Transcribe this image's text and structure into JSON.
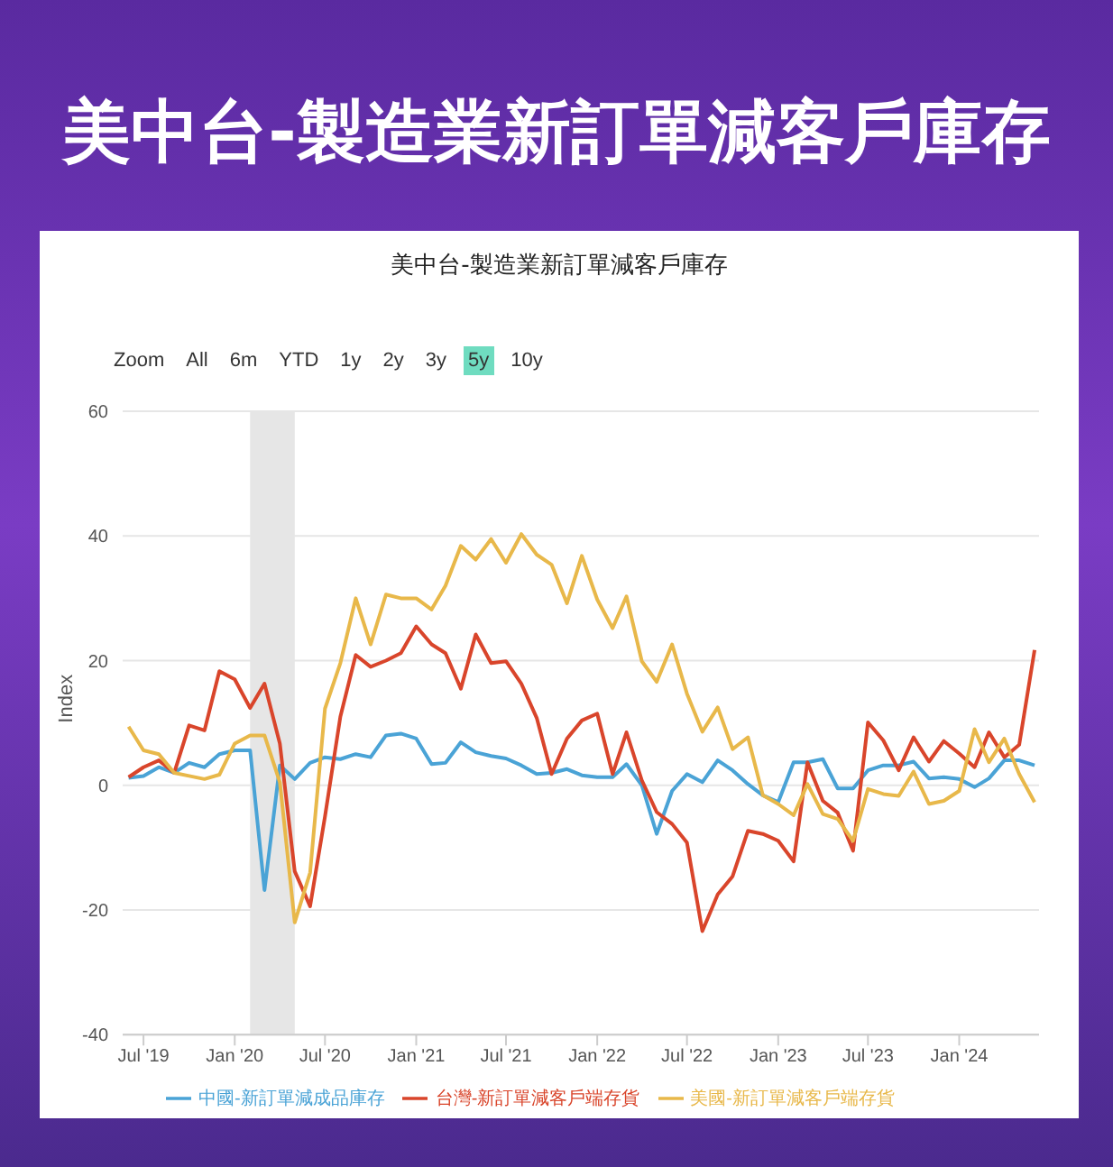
{
  "chart_data": {
    "type": "line",
    "title": "美中台-製造業新訂單減客戶庫存",
    "subtitle": "美中台-製造業新訂單減客戶庫存",
    "ylabel": "Index",
    "annotations": [
      "Zoom",
      "All",
      "6m",
      "YTD",
      "1y",
      "2y",
      "3y",
      "5y",
      "10y"
    ],
    "x": [
      "2019-06",
      "2019-07",
      "2019-08",
      "2019-09",
      "2019-10",
      "2019-11",
      "2019-12",
      "2020-01",
      "2020-02",
      "2020-03",
      "2020-04",
      "2020-05",
      "2020-06",
      "2020-07",
      "2020-08",
      "2020-09",
      "2020-10",
      "2020-11",
      "2020-12",
      "2021-01",
      "2021-02",
      "2021-03",
      "2021-04",
      "2021-05",
      "2021-06",
      "2021-07",
      "2021-08",
      "2021-09",
      "2021-10",
      "2021-11",
      "2021-12",
      "2022-01",
      "2022-02",
      "2022-03",
      "2022-04",
      "2022-05",
      "2022-06",
      "2022-07",
      "2022-08",
      "2022-09",
      "2022-10",
      "2022-11",
      "2022-12",
      "2023-01",
      "2023-02",
      "2023-03",
      "2023-04",
      "2023-05",
      "2023-06",
      "2023-07",
      "2023-08",
      "2023-09",
      "2023-10",
      "2023-11",
      "2023-12",
      "2024-01",
      "2024-02",
      "2024-03",
      "2024-04",
      "2024-05",
      "2024-06"
    ],
    "series": [
      {
        "name": "中國-新訂單減成品庫存",
        "color": "#4aa3d6",
        "values": [
          1.2,
          1.5,
          2.9,
          2,
          3.6,
          2.9,
          5,
          5.6,
          5.6,
          -16.8,
          3.2,
          1,
          3.6,
          4.5,
          4.2,
          5,
          4.5,
          8,
          8.3,
          7.5,
          3.4,
          3.6,
          6.9,
          5.3,
          4.7,
          4.3,
          3.2,
          1.8,
          2,
          2.6,
          1.6,
          1.3,
          1.3,
          3.4,
          0,
          -7.8,
          -0.9,
          1.8,
          0.5,
          4,
          2.4,
          0.2,
          -1.6,
          -2.7,
          3.7,
          3.7,
          4.2,
          -0.5,
          -0.5,
          2.4,
          3.2,
          3.2,
          3.8,
          1.1,
          1.3,
          1,
          -0.3,
          1.1,
          4,
          4,
          3.2
        ]
      },
      {
        "name": "台灣-新訂單減客戶端存貨",
        "color": "#d9452b",
        "values": [
          1.3,
          2.9,
          4,
          2,
          9.6,
          8.8,
          18.3,
          17,
          12.4,
          16.3,
          6.7,
          -13.8,
          -19.4,
          -5,
          11,
          20.9,
          19,
          20,
          21.2,
          25.5,
          22.6,
          21.2,
          15.5,
          24.2,
          19.6,
          19.9,
          16.3,
          10.8,
          1.8,
          7.5,
          10.4,
          11.5,
          1.8,
          8.5,
          0.8,
          -4.3,
          -6.2,
          -9.2,
          -23.4,
          -17.5,
          -14.6,
          -7.3,
          -7.8,
          -8.9,
          -12.2,
          3.7,
          -2.5,
          -4.4,
          -10.5,
          10.1,
          7.2,
          2.4,
          7.7,
          3.8,
          7.1,
          5.1,
          2.9,
          8.5,
          4.5,
          6.5,
          21.7
        ]
      },
      {
        "name": "美國-新訂單減客戶端存貨",
        "color": "#e8b84a",
        "values": [
          9.4,
          5.6,
          5,
          2,
          1.5,
          1,
          1.7,
          6.7,
          8,
          8,
          0.5,
          -22,
          -14,
          12.3,
          19.6,
          30,
          22.6,
          30.6,
          30,
          30,
          28.2,
          32,
          38.4,
          36.2,
          39.5,
          35.7,
          40.3,
          37,
          35.4,
          29.2,
          36.8,
          29.8,
          25.2,
          30.3,
          19.9,
          16.6,
          22.6,
          14.7,
          8.6,
          12.5,
          5.8,
          7.7,
          -1.6,
          -3,
          -4.8,
          0.2,
          -4.6,
          -5.4,
          -8.9,
          -0.6,
          -1.4,
          -1.7,
          2.2,
          -3,
          -2.5,
          -0.9,
          9,
          3.7,
          7.5,
          1.8,
          -2.7
        ]
      }
    ],
    "xlim": [
      "2019-05-20",
      "2024-06-10"
    ],
    "xticks": [
      {
        "value": "2019-07",
        "label": "Jul '19"
      },
      {
        "value": "2020-01",
        "label": "Jan '20"
      },
      {
        "value": "2020-07",
        "label": "Jul '20"
      },
      {
        "value": "2021-01",
        "label": "Jan '21"
      },
      {
        "value": "2021-07",
        "label": "Jul '21"
      },
      {
        "value": "2022-01",
        "label": "Jan '22"
      },
      {
        "value": "2022-07",
        "label": "Jul '22"
      },
      {
        "value": "2023-01",
        "label": "Jan '23"
      },
      {
        "value": "2023-07",
        "label": "Jul '23"
      },
      {
        "value": "2024-01",
        "label": "Jan '24"
      }
    ],
    "ylim": [
      -40,
      60
    ],
    "yticks": [
      -40,
      -20,
      0,
      20,
      40,
      60
    ],
    "bands": [
      {
        "axis": "x",
        "from": "2020-02",
        "to": "2020-05",
        "color": "#e6e6e6"
      }
    ],
    "grid": "y",
    "legend": "bottom",
    "marker": "none",
    "line_style": "solid"
  }
}
